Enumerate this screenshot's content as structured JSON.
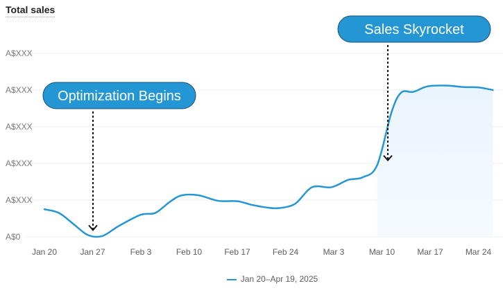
{
  "chart_data": {
    "type": "area",
    "title": "Total sales",
    "y_tick_labels": [
      "A$0",
      "A$XXX",
      "A$XXX",
      "A$XXX",
      "A$XXX",
      "A$XXX"
    ],
    "x_tick_labels": [
      "Jan 20",
      "Jan 27",
      "Feb 3",
      "Feb 10",
      "Feb 17",
      "Feb 24",
      "Mar 3",
      "Mar 10",
      "Mar 17",
      "Mar 24"
    ],
    "x_range": [
      0,
      9.3
    ],
    "y_range": [
      0,
      5
    ],
    "series": [
      {
        "name": "Jan 20–Apr 19, 2025",
        "color": "#2596d4",
        "x": [
          0,
          0.3,
          0.6,
          0.9,
          1.2,
          1.55,
          2.0,
          2.3,
          2.6,
          2.85,
          3.2,
          3.6,
          4.0,
          4.3,
          4.6,
          4.85,
          5.2,
          5.55,
          5.95,
          6.3,
          6.6,
          6.9,
          7.2,
          7.4,
          7.65,
          7.95,
          8.35,
          8.7,
          9.0,
          9.3
        ],
        "y": [
          0.75,
          0.65,
          0.35,
          0.05,
          0.02,
          0.3,
          0.6,
          0.65,
          0.95,
          1.13,
          1.13,
          0.98,
          0.97,
          0.87,
          0.8,
          0.78,
          0.9,
          1.35,
          1.35,
          1.55,
          1.62,
          1.95,
          3.4,
          3.93,
          3.95,
          4.1,
          4.12,
          4.08,
          4.07,
          4.0
        ]
      }
    ],
    "annotations": [
      {
        "text": "Optimization Begins",
        "x": 1.0,
        "y": 0.05
      },
      {
        "text": "Sales Skyrocket",
        "x": 7.0,
        "y": 1.95
      }
    ],
    "legend_position": "bottom",
    "grid": true
  }
}
